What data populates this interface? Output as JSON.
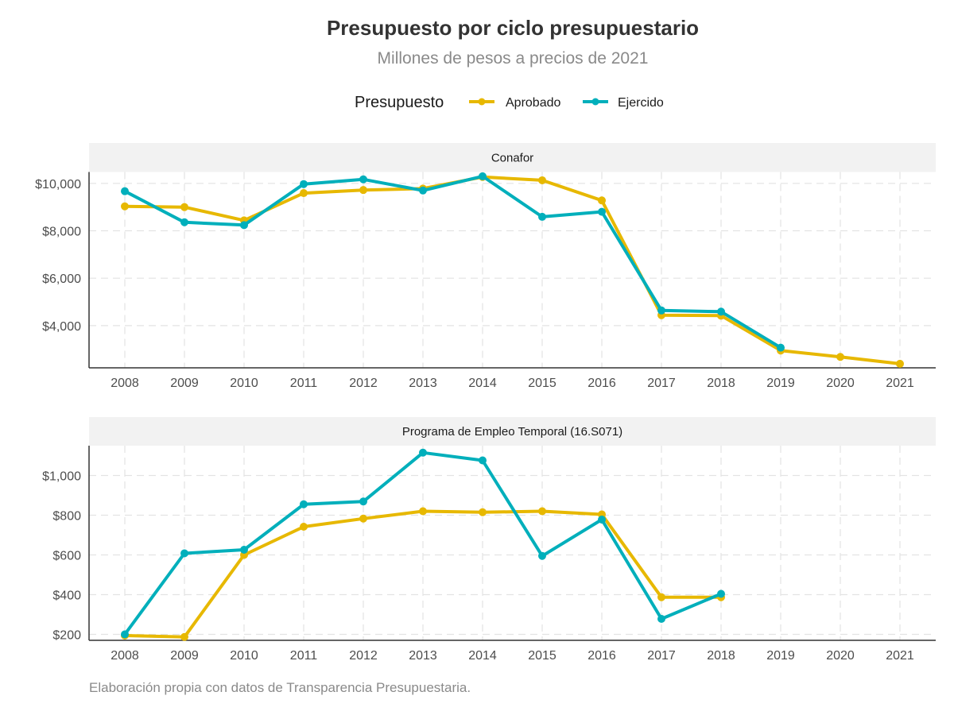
{
  "chart_data": {
    "type": "line",
    "title": "Presupuesto por ciclo presupuestario",
    "subtitle": "Millones de pesos a precios de 2021",
    "caption": "Elaboración propia con datos de Transparencia Presupuestaria.",
    "legend": {
      "title": "Presupuesto",
      "placement": "top-center",
      "entries": [
        {
          "name": "Aprobado",
          "color": "#E7B800"
        },
        {
          "name": "Ejercido",
          "color": "#00AFBB"
        }
      ]
    },
    "x": [
      2008,
      2009,
      2010,
      2011,
      2012,
      2013,
      2014,
      2015,
      2016,
      2017,
      2018,
      2019,
      2020,
      2021
    ],
    "x_tick_labels": [
      "2008",
      "2009",
      "2010",
      "2011",
      "2012",
      "2013",
      "2014",
      "2015",
      "2016",
      "2017",
      "2018",
      "2019",
      "2020",
      "2021"
    ],
    "grid": true,
    "panels": [
      {
        "strip_label": "Conafor",
        "ylim": [
          2220,
          10480
        ],
        "y_ticks": [
          4000,
          6000,
          8000,
          10000
        ],
        "y_tick_labels": [
          "$4,000",
          "$6,000",
          "$8,000",
          "$10,000"
        ],
        "series": [
          {
            "name": "Aprobado",
            "color": "#E7B800",
            "values": [
              9030,
              9000,
              8440,
              9590,
              9720,
              9780,
              10270,
              10130,
              9280,
              4440,
              4420,
              2950,
              2680,
              2390
            ]
          },
          {
            "name": "Ejercido",
            "color": "#00AFBB",
            "values": [
              9670,
              8360,
              8240,
              9970,
              10170,
              9700,
              10300,
              8590,
              8800,
              4640,
              4590,
              3070,
              null,
              null
            ]
          }
        ]
      },
      {
        "strip_label": "Programa de Empleo Temporal (16.S071)",
        "ylim": [
          170,
          1150
        ],
        "y_ticks": [
          200,
          400,
          600,
          800,
          1000
        ],
        "y_tick_labels": [
          "$200",
          "$400",
          "$600",
          "$800",
          "$1,000"
        ],
        "series": [
          {
            "name": "Aprobado",
            "color": "#E7B800",
            "values": [
              194,
              187,
              600,
              742,
              783,
              820,
              815,
              820,
              804,
              387,
              387,
              null,
              null,
              null
            ]
          },
          {
            "name": "Ejercido",
            "color": "#00AFBB",
            "values": [
              200,
              608,
              626,
              855,
              869,
              1115,
              1076,
              595,
              778,
              278,
              404,
              null,
              null,
              null
            ]
          }
        ]
      }
    ]
  }
}
